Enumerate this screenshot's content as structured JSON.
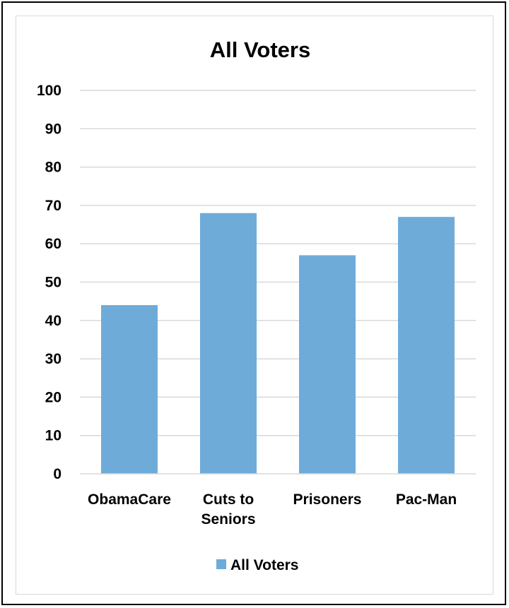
{
  "chart_data": {
    "type": "bar",
    "title": "All Voters",
    "categories": [
      [
        "ObamaCare"
      ],
      [
        "Cuts to",
        "Seniors"
      ],
      [
        "Prisoners"
      ],
      [
        "Pac-Man"
      ]
    ],
    "series": [
      {
        "name": "All Voters",
        "values": [
          44,
          68,
          57,
          67
        ],
        "color": "#6fabd9"
      }
    ],
    "ylim": [
      0,
      100
    ],
    "yticks": [
      0,
      10,
      20,
      30,
      40,
      50,
      60,
      70,
      80,
      90,
      100
    ],
    "grid": true,
    "gridColor": "#d9d9d9",
    "legend": "bottom"
  }
}
